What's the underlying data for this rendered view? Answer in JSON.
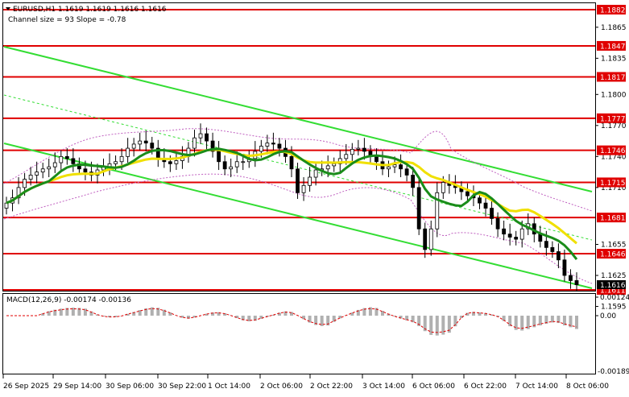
{
  "header": {
    "symbol_line": "EURUSD,H1  1.1619 1.1619 1.1616 1.1616",
    "channel_line": "Channel size = 93 Slope = -0.78"
  },
  "price_axis": {
    "labels": [
      "1.1865",
      "1.1835",
      "1.1800",
      "1.1770",
      "1.1740",
      "1.1710",
      "1.1655",
      "1.1625",
      "1.1595"
    ],
    "current_price": "1.1616"
  },
  "levels": [
    {
      "label": "1.1882",
      "price": 1.1882
    },
    {
      "label": "1.1847",
      "price": 1.1847
    },
    {
      "label": "1.1817",
      "price": 1.1817
    },
    {
      "label": "1.1777",
      "price": 1.1777
    },
    {
      "label": "1.1746",
      "price": 1.1746
    },
    {
      "label": "1.1715",
      "price": 1.1715
    },
    {
      "label": "1.1681",
      "price": 1.1681
    },
    {
      "label": "1.1646",
      "price": 1.1646
    },
    {
      "label": "1.1611",
      "price": 1.1611
    }
  ],
  "macd": {
    "label": "MACD(12,26,9) -0.00174 -0.00136",
    "axis_labels": [
      "0.00124",
      "0.00",
      "-0.00189"
    ]
  },
  "time_axis": [
    "26 Sep 2025",
    "29 Sep 14:00",
    "30 Sep 06:00",
    "30 Sep 22:00",
    "1 Oct 14:00",
    "2 Oct 06:00",
    "2 Oct 22:00",
    "3 Oct 14:00",
    "6 Oct 06:00",
    "6 Oct 22:00",
    "7 Oct 14:00",
    "8 Oct 06:00"
  ],
  "colors": {
    "level_line": "#e00000",
    "channel": "#33dd33",
    "ma_fast": "#1a8c1a",
    "ma_slow": "#f0e000",
    "bands": "#c060c0",
    "macd_hist": "#b0b0b0",
    "macd_signal": "#e00000",
    "candle": "#000000"
  },
  "chart_data": {
    "type": "candlestick",
    "price_range": [
      1.1585,
      1.1892
    ],
    "closes": [
      1.1695,
      1.17,
      1.171,
      1.1718,
      1.1722,
      1.1725,
      1.1728,
      1.173,
      1.1734,
      1.174,
      1.1738,
      1.1733,
      1.1728,
      1.1725,
      1.1722,
      1.1727,
      1.173,
      1.1733,
      1.1735,
      1.174,
      1.1748,
      1.1752,
      1.1755,
      1.1753,
      1.1748,
      1.1738,
      1.1735,
      1.1733,
      1.1736,
      1.174,
      1.1748,
      1.1758,
      1.1762,
      1.1755,
      1.1745,
      1.1735,
      1.1728,
      1.173,
      1.1735,
      1.1735,
      1.1738,
      1.1745,
      1.175,
      1.1753,
      1.1752,
      1.1748,
      1.174,
      1.1728,
      1.1705,
      1.1712,
      1.172,
      1.1727,
      1.1728,
      1.1731,
      1.1733,
      1.1738,
      1.1742,
      1.1747,
      1.1748,
      1.1745,
      1.174,
      1.1735,
      1.1728,
      1.173,
      1.1732,
      1.1728,
      1.1722,
      1.171,
      1.167,
      1.165,
      1.167,
      1.1705,
      1.1715,
      1.1712,
      1.171,
      1.1706,
      1.1702,
      1.17,
      1.1695,
      1.169,
      1.168,
      1.167,
      1.1665,
      1.1662,
      1.166,
      1.167,
      1.1675,
      1.1665,
      1.1658,
      1.1652,
      1.1648,
      1.164,
      1.1625,
      1.162,
      1.1616
    ]
  }
}
